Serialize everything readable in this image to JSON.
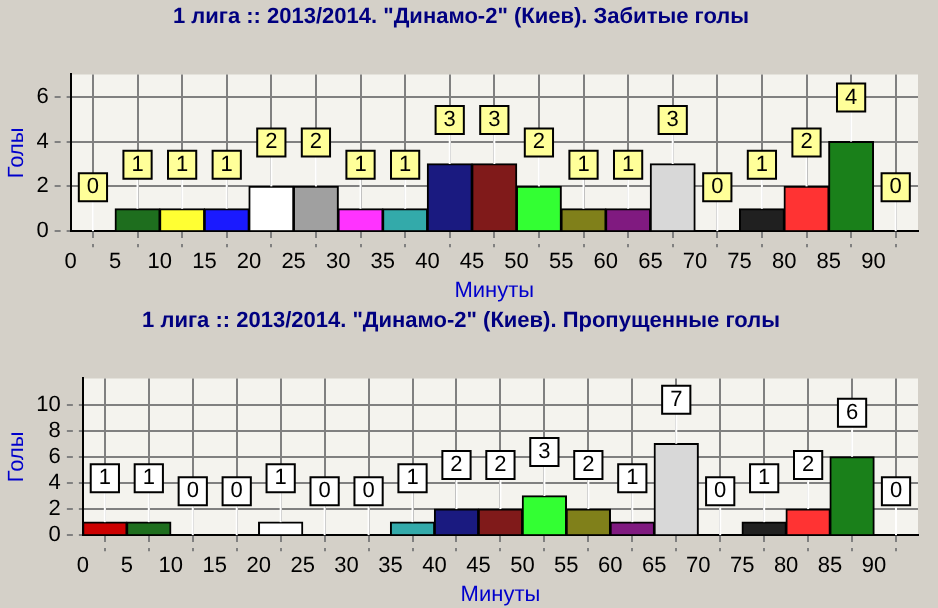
{
  "chart_data": [
    {
      "type": "histogram",
      "title": "1 лига :: 2013/2014. \"Динамо-2\" (Киев). Забитые голы",
      "xlabel": "Минуты",
      "ylabel": "Голы",
      "bins": [
        0,
        5,
        10,
        15,
        20,
        25,
        30,
        35,
        40,
        45,
        50,
        55,
        60,
        65,
        70,
        75,
        80,
        85,
        90,
        95
      ],
      "values": [
        0,
        1,
        1,
        1,
        2,
        2,
        1,
        1,
        3,
        3,
        2,
        1,
        1,
        3,
        0,
        1,
        2,
        4,
        0
      ],
      "colors": [
        "#cc0000",
        "#1e6e1e",
        "#ffff33",
        "#1a1aff",
        "#ffffff",
        "#a0a0a0",
        "#ff33ff",
        "#33aaaa",
        "#1a1a80",
        "#801a1a",
        "#33ff33",
        "#80801a",
        "#801a80",
        "#d8d8d8",
        "#33cccc",
        "#202020",
        "#ff3333",
        "#1a801a",
        "#cccc33"
      ],
      "xlim": [
        0,
        95
      ],
      "xticks": [
        0,
        5,
        10,
        15,
        20,
        25,
        30,
        35,
        40,
        45,
        50,
        55,
        60,
        65,
        70,
        75,
        80,
        85,
        90
      ],
      "ylim": [
        0,
        7
      ],
      "yticks": [
        0,
        2,
        4,
        6
      ],
      "grid": true,
      "legend": false,
      "data_labels": true
    },
    {
      "type": "histogram",
      "title": "1 лига :: 2013/2014. \"Динамо-2\" (Киев). Пропущенные голы",
      "xlabel": "Минуты",
      "ylabel": "Голы",
      "bins": [
        0,
        5,
        10,
        15,
        20,
        25,
        30,
        35,
        40,
        45,
        50,
        55,
        60,
        65,
        70,
        75,
        80,
        85,
        90,
        95
      ],
      "values": [
        1,
        1,
        0,
        0,
        1,
        0,
        0,
        1,
        2,
        2,
        3,
        2,
        1,
        7,
        0,
        1,
        2,
        6,
        0
      ],
      "colors": [
        "#cc0000",
        "#1e6e1e",
        "#cccc33",
        "#1a1aff",
        "#ffffff",
        "#505050",
        "#ff33ff",
        "#33aaaa",
        "#1a1a80",
        "#801a1a",
        "#33ff33",
        "#80801a",
        "#801a80",
        "#d8d8d8",
        "#33cccc",
        "#202020",
        "#ff3333",
        "#1a801a",
        "#cccc33"
      ],
      "xlim": [
        0,
        95
      ],
      "xticks": [
        0,
        5,
        10,
        15,
        20,
        25,
        30,
        35,
        40,
        45,
        50,
        55,
        60,
        65,
        70,
        75,
        80,
        85,
        90
      ],
      "ylim": [
        0,
        12
      ],
      "yticks": [
        0,
        2,
        4,
        6,
        8,
        10
      ],
      "grid": true,
      "legend": false,
      "data_labels": true
    }
  ]
}
